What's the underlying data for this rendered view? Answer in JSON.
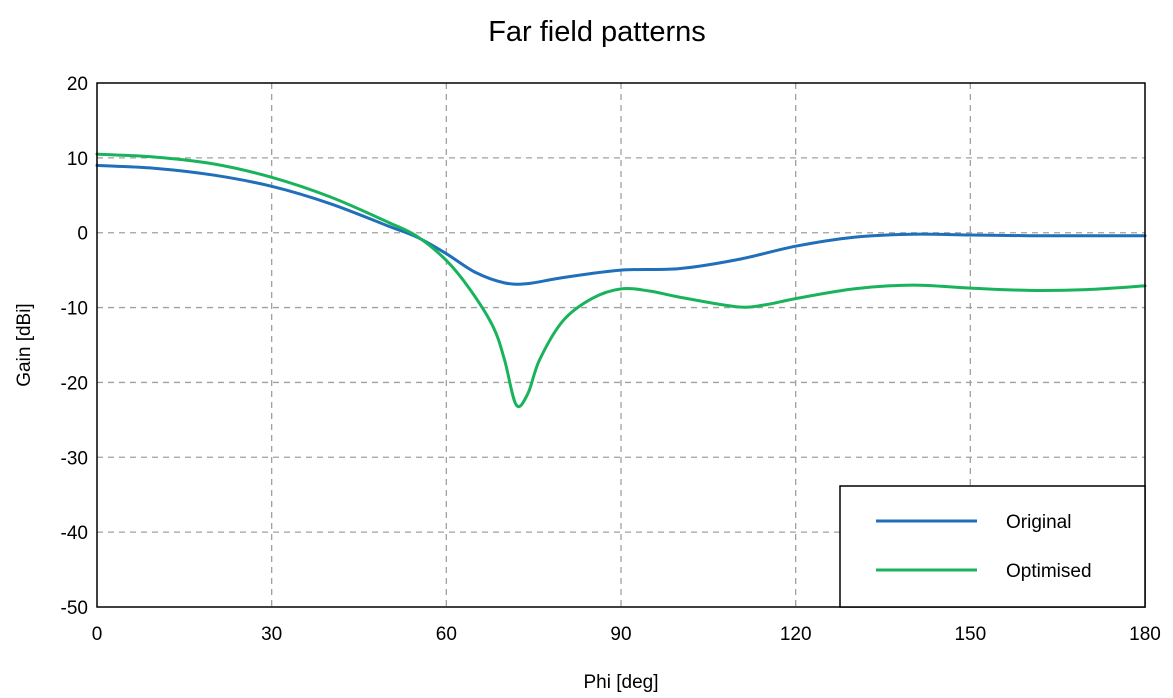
{
  "chart_data": {
    "type": "line",
    "title": "Far field patterns",
    "xlabel": "Phi [deg]",
    "ylabel": "Gain [dBi]",
    "xlim": [
      0,
      180
    ],
    "ylim": [
      -50,
      20
    ],
    "xticks": [
      0,
      30,
      60,
      90,
      120,
      150,
      180
    ],
    "yticks": [
      20,
      10,
      0,
      -10,
      -20,
      -30,
      -40,
      -50
    ],
    "grid": true,
    "legend_position": "bottom-right",
    "series": [
      {
        "name": "Original",
        "color": "#1f6fba",
        "x": [
          0,
          10,
          20,
          30,
          40,
          50,
          55,
          60,
          65,
          70,
          74,
          80,
          90,
          100,
          110,
          120,
          130,
          140,
          150,
          160,
          170,
          180
        ],
        "y": [
          9,
          8.6,
          7.7,
          6.2,
          3.9,
          0.9,
          -0.6,
          -2.8,
          -5.3,
          -6.7,
          -6.8,
          -6.0,
          -5.0,
          -4.8,
          -3.6,
          -1.8,
          -0.6,
          -0.2,
          -0.3,
          -0.4,
          -0.4,
          -0.4
        ]
      },
      {
        "name": "Optimised",
        "color": "#19b35c",
        "x": [
          0,
          10,
          20,
          30,
          40,
          50,
          55,
          60,
          64,
          68,
          70,
          72,
          74,
          76,
          80,
          85,
          90,
          95,
          100,
          110,
          115,
          120,
          130,
          140,
          150,
          160,
          170,
          180
        ],
        "y": [
          10.5,
          10.1,
          9.2,
          7.4,
          4.8,
          1.4,
          -0.5,
          -3.7,
          -7.5,
          -12.5,
          -17,
          -23,
          -21.5,
          -17,
          -11.8,
          -8.8,
          -7.5,
          -7.8,
          -8.6,
          -9.9,
          -9.6,
          -8.8,
          -7.5,
          -7.0,
          -7.4,
          -7.7,
          -7.6,
          -7.1
        ]
      }
    ]
  }
}
